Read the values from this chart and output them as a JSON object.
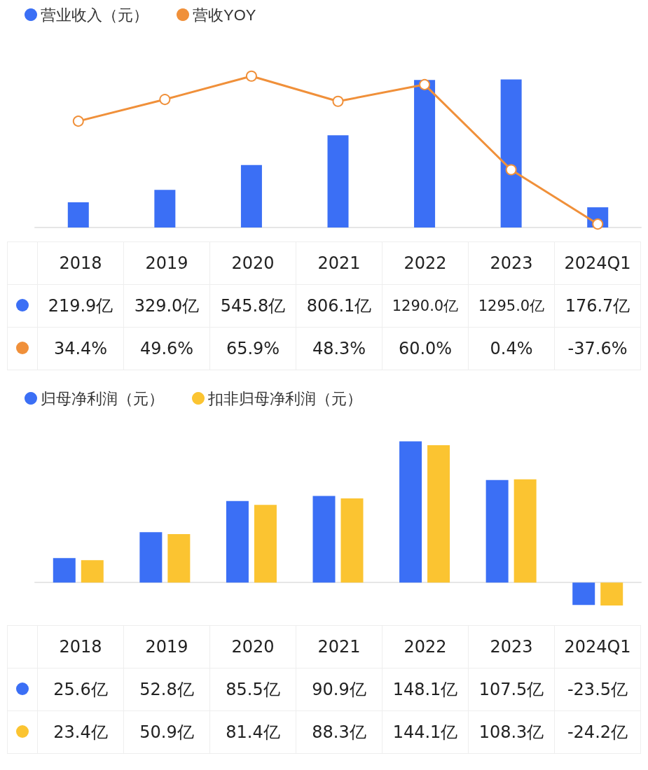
{
  "chart_data": [
    {
      "type": "bar",
      "categories": [
        "2018",
        "2019",
        "2020",
        "2021",
        "2022",
        "2023",
        "2024Q1"
      ],
      "legend": "top left",
      "tick_labels": false,
      "marker": "circle",
      "series": [
        {
          "name": "营业收入（元）",
          "color": "#3b6ff5",
          "values": [
            219.9,
            329.0,
            545.8,
            806.1,
            1290.0,
            1295.0,
            176.7
          ],
          "value_labels": [
            "219.9亿",
            "329.0亿",
            "545.8亿",
            "806.1亿",
            "1290.0亿",
            "1295.0亿",
            "176.7亿"
          ]
        },
        {
          "name": "营收YOY",
          "type": "line",
          "axis": "y2",
          "color": "#f0903a",
          "values": [
            34.4,
            49.6,
            65.9,
            48.3,
            60.0,
            0.4,
            -37.6
          ],
          "value_labels": [
            "34.4%",
            "49.6%",
            "65.9%",
            "48.3%",
            "60.0%",
            "0.4%",
            "-37.6%"
          ]
        }
      ]
    },
    {
      "type": "bar",
      "categories": [
        "2018",
        "2019",
        "2020",
        "2021",
        "2022",
        "2023",
        "2024Q1"
      ],
      "legend": "top left",
      "tick_labels": false,
      "series": [
        {
          "name": "归母净利润（元）",
          "color": "#3b6ff5",
          "values": [
            25.6,
            52.8,
            85.5,
            90.9,
            148.1,
            107.5,
            -23.5
          ],
          "value_labels": [
            "25.6亿",
            "52.8亿",
            "85.5亿",
            "90.9亿",
            "148.1亿",
            "107.5亿",
            "-23.5亿"
          ]
        },
        {
          "name": "扣非归母净利润（元）",
          "color": "#fbc431",
          "values": [
            23.4,
            50.9,
            81.4,
            88.3,
            144.1,
            108.3,
            -24.2
          ],
          "value_labels": [
            "23.4亿",
            "50.9亿",
            "81.4亿",
            "88.3亿",
            "144.1亿",
            "108.3亿",
            "-24.2亿"
          ]
        }
      ]
    }
  ]
}
